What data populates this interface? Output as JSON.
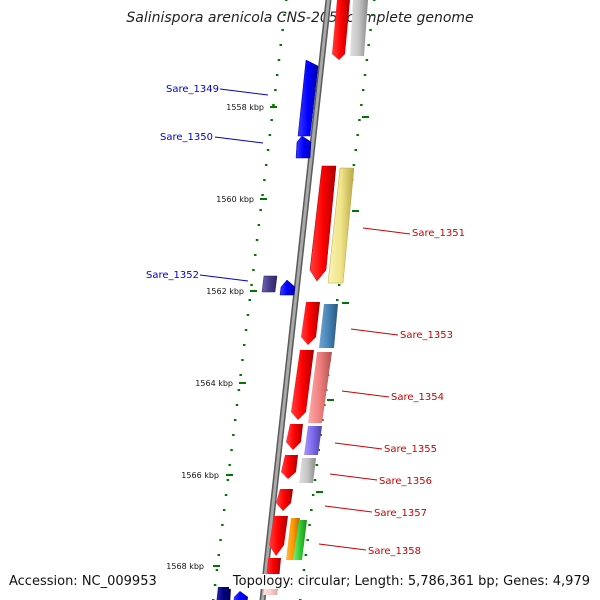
{
  "title": "Salinispora arenicola CNS-205, complete genome",
  "footer": {
    "accession": "Accession: NC_009953",
    "topology": "Topology: circular; Length: 5,786,361 bp; Genes: 4,979"
  },
  "scale_labels": [
    "1558 kbp",
    "1560 kbp",
    "1562 kbp",
    "1564 kbp",
    "1566 kbp",
    "1568 kbp"
  ],
  "left_labels": [
    "Sare_1349",
    "Sare_1350",
    "Sare_1352"
  ],
  "right_labels": [
    "Sare_1351",
    "Sare_1353",
    "Sare_1354",
    "Sare_1355",
    "Sare_1356",
    "Sare_1357",
    "Sare_1358"
  ],
  "colors": {
    "forward_label": "#0000cc",
    "reverse_label": "#cc0000",
    "tick": "#007700",
    "backbone": "#888888"
  }
}
